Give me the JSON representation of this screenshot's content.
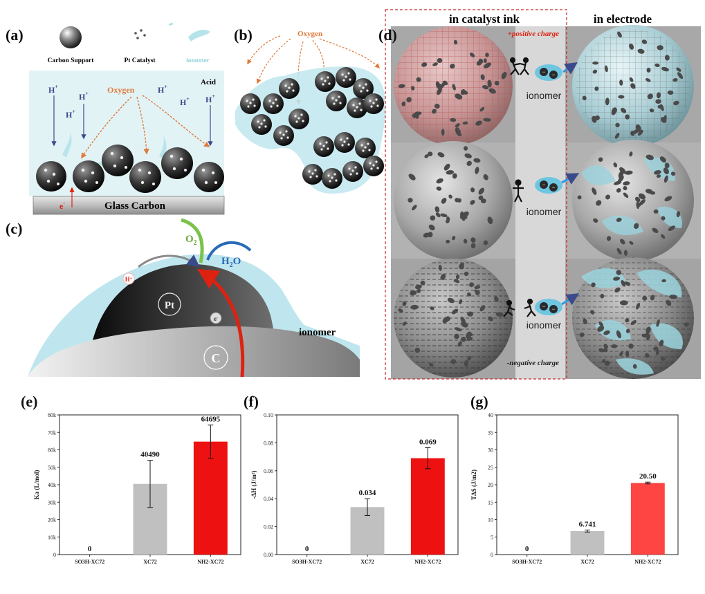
{
  "panels": {
    "a": {
      "label": "(a)",
      "legend": {
        "carbon": "Carbon Support",
        "pt": "Pt Catalyst",
        "ionomer": "ionomer"
      },
      "acid": "Acid",
      "oxygen": "Oxygen",
      "proton": "H",
      "proton_sup": "+",
      "electron": "e",
      "electron_sup": "-",
      "substrate": "Glass Carbon"
    },
    "b": {
      "label": "(b)",
      "oxygen": "Oxygen"
    },
    "c": {
      "label": "(c)",
      "o2": "O",
      "o2_sub": "2",
      "h2o": "H",
      "h2o_sub": "2",
      "h2o_end": "O",
      "h_plus": "H",
      "h_plus_sup": "+",
      "pt": "Pt",
      "electron": "e",
      "electron_sup": "-",
      "carbon": "C",
      "ionomer": "ionomer"
    },
    "d": {
      "label": "(d)",
      "col_ink": "in catalyst ink",
      "col_electrode": "in electrode",
      "positive": "+positive charge",
      "negative": "-negative charge",
      "ionomer_labels": [
        "ionomer",
        "ionomer",
        "ionomer"
      ]
    }
  },
  "chart_data": [
    {
      "panel": "(e)",
      "type": "bar",
      "categories": [
        "SO3H-XC72",
        "XC72",
        "NH2-XC72"
      ],
      "values": [
        0,
        40490,
        64695
      ],
      "errors": [
        0,
        13500,
        9500
      ],
      "value_labels": [
        "0",
        "40490",
        "64695"
      ],
      "ylabel": "Ka (L/mol)",
      "ylim": [
        0,
        80000
      ],
      "yticks": [
        "0",
        "10k",
        "20k",
        "30k",
        "40k",
        "50k",
        "60k",
        "70k",
        "80k"
      ],
      "colors": [
        "#c0c0c0",
        "#c0c0c0",
        "#ee1111"
      ]
    },
    {
      "panel": "(f)",
      "type": "bar",
      "categories": [
        "SO3H-XC72",
        "XC72",
        "NH2-XC72"
      ],
      "values": [
        0,
        0.034,
        0.069
      ],
      "errors": [
        0,
        0.006,
        0.0075
      ],
      "value_labels": [
        "0",
        "0.034",
        "0.069"
      ],
      "ylabel": "-ΔH (J/m²)",
      "ylim": [
        0,
        0.1
      ],
      "yticks": [
        "0.00",
        "0.02",
        "0.04",
        "0.06",
        "0.08",
        "0.10"
      ],
      "colors": [
        "#c0c0c0",
        "#c0c0c0",
        "#ee1111"
      ]
    },
    {
      "panel": "(g)",
      "type": "bar",
      "categories": [
        "SO3H-XC72",
        "XC72",
        "NH2-XC72"
      ],
      "values": [
        0,
        6.741,
        20.5
      ],
      "errors": [
        0,
        0.3,
        0.25
      ],
      "value_labels": [
        "0",
        "6.741",
        "20.50"
      ],
      "ylabel": "TΔS (J/m2)",
      "ylim": [
        0,
        40
      ],
      "yticks": [
        "0",
        "5",
        "10",
        "15",
        "20",
        "25",
        "30",
        "35",
        "40"
      ],
      "colors": [
        "#c0c0c0",
        "#c0c0c0",
        "#ff4444"
      ]
    }
  ]
}
